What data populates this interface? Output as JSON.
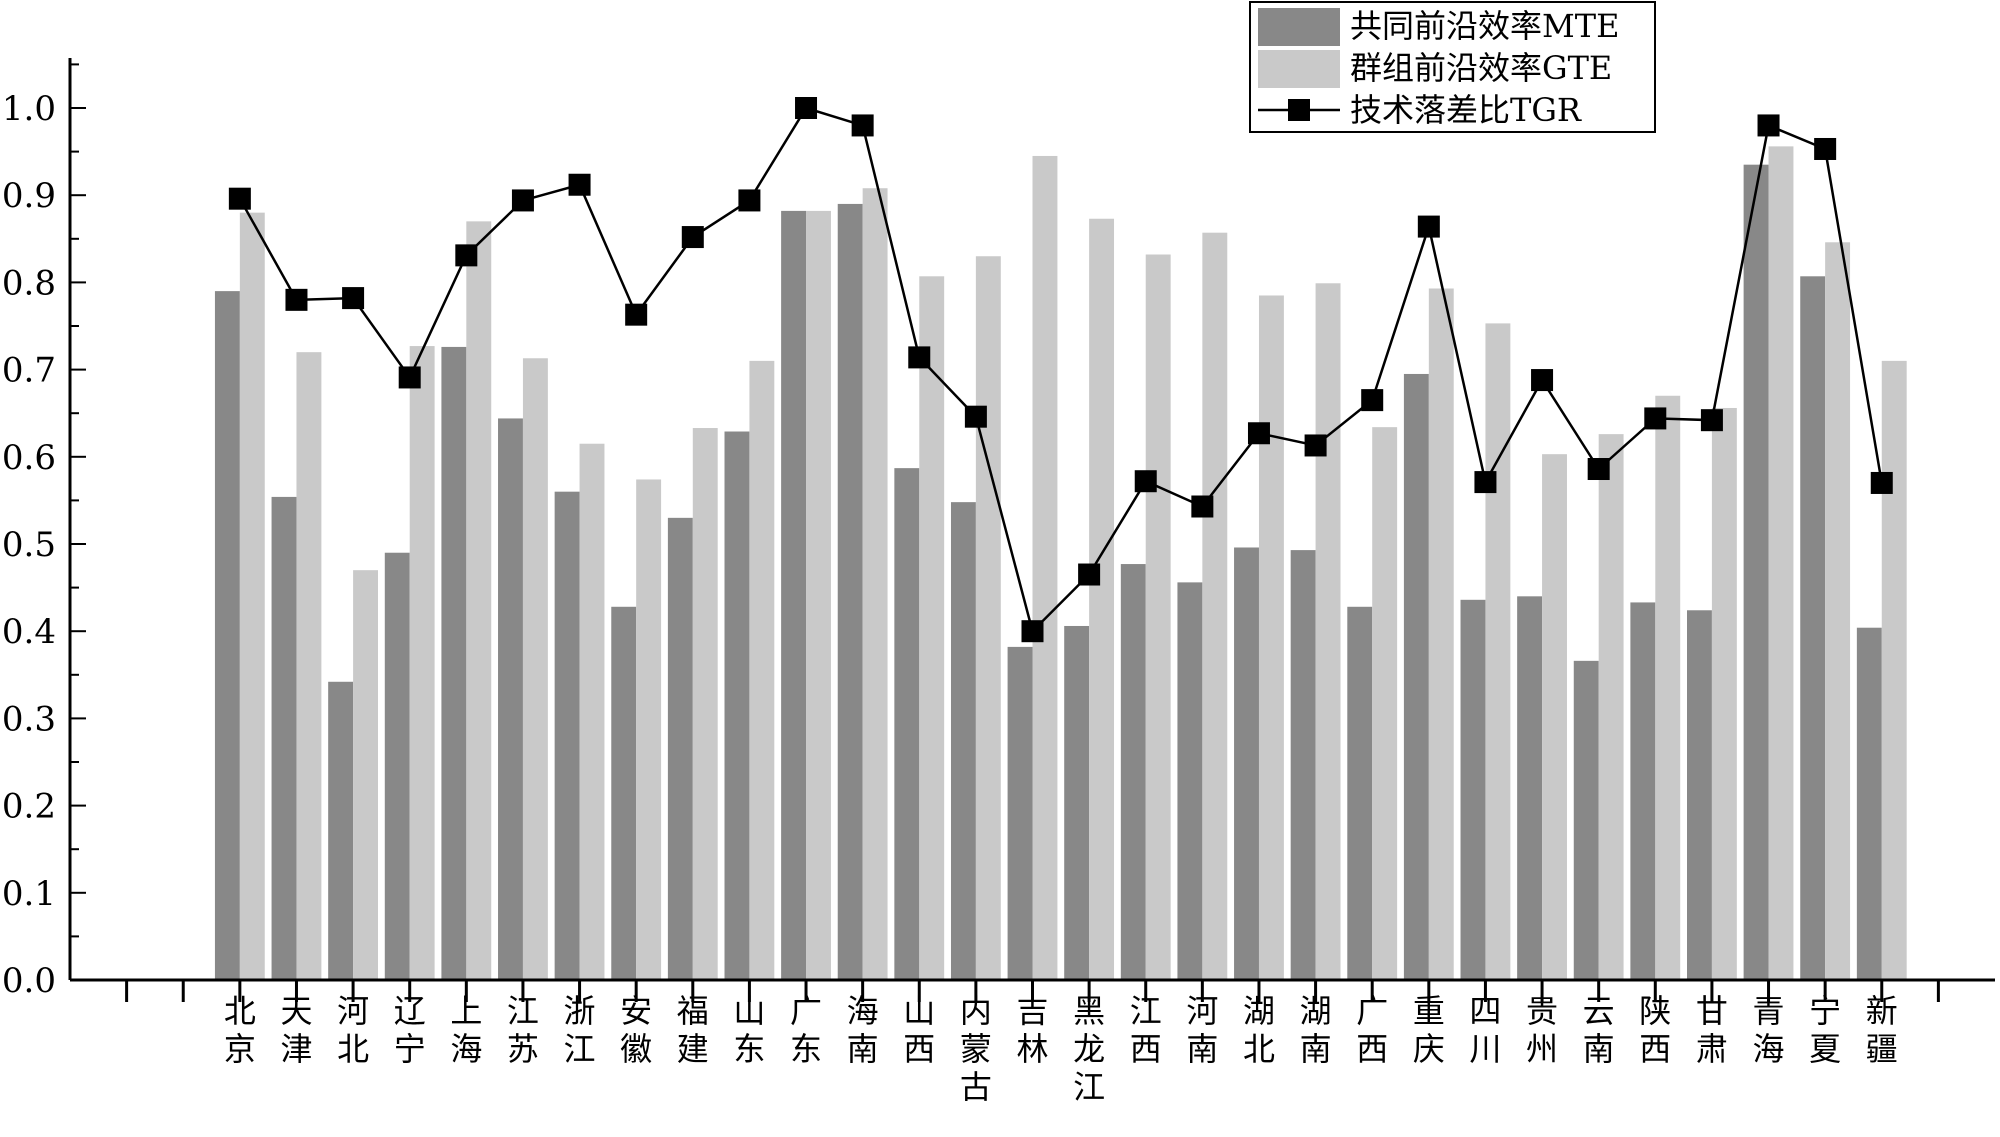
{
  "chart_data": {
    "type": "bar",
    "categories": [
      "北京",
      "天津",
      "河北",
      "辽宁",
      "上海",
      "江苏",
      "浙江",
      "安徽",
      "福建",
      "山东",
      "广东",
      "海南",
      "山西",
      "内蒙古",
      "吉林",
      "黑龙江",
      "江西",
      "河南",
      "湖北",
      "湖南",
      "广西",
      "重庆",
      "四川",
      "贵州",
      "云南",
      "陕西",
      "甘肃",
      "青海",
      "宁夏",
      "新疆"
    ],
    "series": [
      {
        "name": "共同前沿效率MTE",
        "kind": "bar",
        "color": "#888888",
        "values": [
          0.79,
          0.554,
          0.342,
          0.49,
          0.726,
          0.644,
          0.56,
          0.428,
          0.53,
          0.629,
          0.882,
          0.89,
          0.587,
          0.548,
          0.382,
          0.406,
          0.477,
          0.456,
          0.496,
          0.493,
          0.428,
          0.695,
          0.436,
          0.44,
          0.366,
          0.433,
          0.424,
          0.935,
          0.807,
          0.404
        ]
      },
      {
        "name": "群组前沿效率GTE",
        "kind": "bar",
        "color": "#c9c9c9",
        "values": [
          0.88,
          0.72,
          0.47,
          0.727,
          0.87,
          0.713,
          0.615,
          0.574,
          0.633,
          0.71,
          0.882,
          0.908,
          0.807,
          0.83,
          0.945,
          0.873,
          0.832,
          0.857,
          0.785,
          0.799,
          0.634,
          0.793,
          0.753,
          0.603,
          0.626,
          0.67,
          0.656,
          0.956,
          0.846,
          0.71
        ]
      },
      {
        "name": "技术落差比TGR",
        "kind": "line",
        "color": "#000000",
        "values": [
          0.896,
          0.78,
          0.782,
          0.691,
          0.831,
          0.894,
          0.912,
          0.763,
          0.852,
          0.894,
          1.0,
          0.98,
          0.714,
          0.646,
          0.4,
          0.465,
          0.572,
          0.543,
          0.627,
          0.613,
          0.665,
          0.864,
          0.571,
          0.688,
          0.586,
          0.644,
          0.642,
          0.98,
          0.953,
          0.57
        ]
      }
    ],
    "yticks": [
      "0.0",
      "0.1",
      "0.2",
      "0.3",
      "0.4",
      "0.5",
      "0.6",
      "0.7",
      "0.8",
      "0.9",
      "1.0"
    ],
    "ylim": [
      0,
      1.05
    ],
    "slots": 33,
    "first_category_slot": 2,
    "legend_position": "top-right"
  }
}
